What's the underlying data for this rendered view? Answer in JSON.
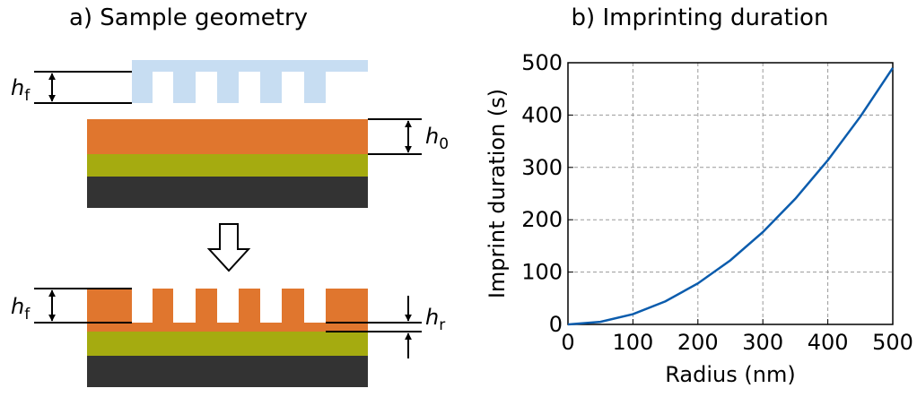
{
  "panel_a": {
    "title": "a) Sample geometry",
    "labels": {
      "hf_top": {
        "main": "h",
        "sub": "f"
      },
      "h0": {
        "main": "h",
        "sub": "0"
      },
      "hf_bottom": {
        "main": "h",
        "sub": "f"
      },
      "hr": {
        "main": "h",
        "sub": "r"
      }
    }
  },
  "chart_data": {
    "type": "line",
    "title": "b) Imprinting duration",
    "x_label": "Radius (nm)",
    "y_label": "Imprint duration (s)",
    "x": [
      0,
      50,
      100,
      150,
      200,
      250,
      300,
      350,
      400,
      450,
      500
    ],
    "series": [
      {
        "color": "#0b5cad",
        "values": [
          0,
          4.9,
          19.6,
          44.1,
          78.4,
          122.5,
          176.4,
          240.1,
          313.6,
          396.9,
          490
        ]
      }
    ],
    "xlim": [
      0,
      500
    ],
    "ylim": [
      0,
      500
    ],
    "xticks": [
      0,
      100,
      200,
      300,
      400,
      500
    ],
    "yticks": [
      0,
      100,
      200,
      300,
      400,
      500
    ],
    "grid": true
  }
}
